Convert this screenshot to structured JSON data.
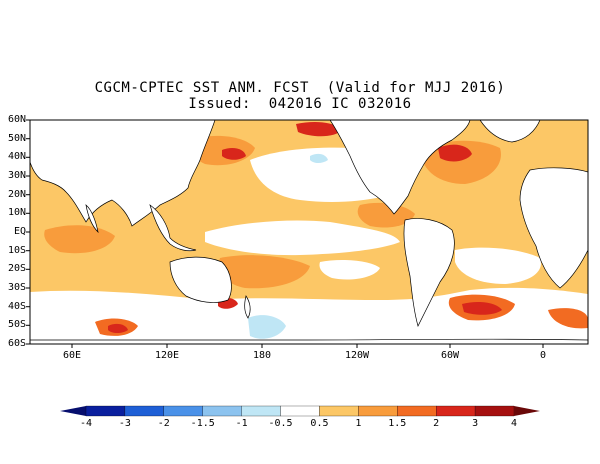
{
  "title": {
    "line1": "CGCM-CPTEC SST ANM. FCST  (Valid for MJJ 2016)",
    "line2": "Issued:  042016 IC 032016"
  },
  "lat_labels": [
    "60N",
    "50N",
    "40N",
    "30N",
    "20N",
    "10N",
    "EQ",
    "10S",
    "20S",
    "30S",
    "40S",
    "50S",
    "60S"
  ],
  "lon_labels": [
    "60E",
    "120E",
    "180",
    "120W",
    "60W",
    "0"
  ],
  "colorbar": {
    "labels": [
      "-4",
      "-3",
      "-2",
      "-1.5",
      "-1",
      "-0.5",
      "0.5",
      "1",
      "1.5",
      "2",
      "3",
      "4"
    ],
    "colors": [
      "#0a1f9e",
      "#1e5fd6",
      "#4a91e8",
      "#8cc3ef",
      "#bfe6f5",
      "#ffffff",
      "#fcc766",
      "#f89c3c",
      "#f26b22",
      "#d8261b",
      "#a5100f"
    ],
    "low_arrow_color": "#060e6e",
    "high_arrow_color": "#6a0808"
  },
  "map_colors": {
    "land": "#ffffff",
    "anomaly_0_5_1": "#fcc766",
    "anomaly_1_1_5": "#f89c3c",
    "anomaly_1_5_2": "#f26b22",
    "anomaly_2_3": "#d8261b",
    "anomaly_3_4": "#a5100f",
    "neg_0_5_1": "#bfe6f5",
    "neg_1_1_5": "#8cc3ef"
  }
}
